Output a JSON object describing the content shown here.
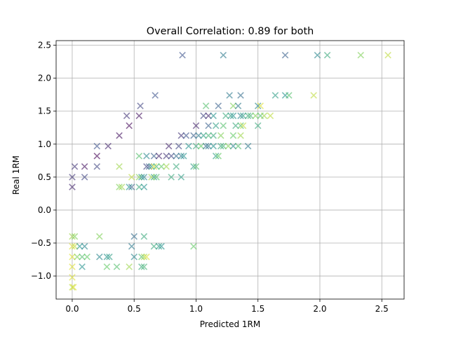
{
  "chart_data": {
    "type": "scatter",
    "title": "Overall Correlation: 0.89 for both",
    "xlabel": "Predicted 1RM",
    "ylabel": "Real 1RM",
    "xlim": [
      -0.13,
      2.68
    ],
    "ylim": [
      -1.35,
      2.57
    ],
    "xticks": [
      0.0,
      0.5,
      1.0,
      1.5,
      2.0,
      2.5
    ],
    "xtick_labels": [
      "0.0",
      "0.5",
      "1.0",
      "1.5",
      "2.0",
      "2.5"
    ],
    "yticks": [
      -1.0,
      -0.5,
      0.0,
      0.5,
      1.0,
      1.5,
      2.0,
      2.5
    ],
    "ytick_labels": [
      "−1.0",
      "−0.5",
      "0.0",
      "0.5",
      "1.0",
      "1.5",
      "2.0",
      "2.5"
    ],
    "grid": true,
    "marker": "x",
    "colormap": "viridis",
    "points": [
      [
        0.0,
        0.35,
        0.1
      ],
      [
        0.0,
        0.5,
        0.15
      ],
      [
        0.02,
        0.66,
        0.15
      ],
      [
        0.1,
        0.66,
        0.05
      ],
      [
        0.1,
        0.5,
        0.2
      ],
      [
        0.2,
        0.82,
        0.0
      ],
      [
        0.2,
        0.97,
        0.25
      ],
      [
        0.2,
        0.66,
        0.2
      ],
      [
        0.29,
        0.97,
        0.1
      ],
      [
        0.38,
        1.13,
        0.05
      ],
      [
        0.44,
        1.43,
        0.15
      ],
      [
        0.46,
        1.28,
        0.02
      ],
      [
        0.54,
        1.43,
        0.05
      ],
      [
        0.55,
        1.58,
        0.2
      ],
      [
        0.67,
        1.74,
        0.25
      ],
      [
        0.89,
        2.35,
        0.25
      ],
      [
        1.22,
        2.35,
        0.4
      ],
      [
        1.72,
        2.35,
        0.3
      ],
      [
        1.98,
        2.35,
        0.45
      ],
      [
        2.06,
        2.35,
        0.6
      ],
      [
        2.33,
        2.35,
        0.8
      ],
      [
        2.55,
        2.35,
        0.9
      ],
      [
        1.08,
        1.58,
        0.7
      ],
      [
        1.18,
        1.58,
        0.3
      ],
      [
        1.27,
        1.74,
        0.4
      ],
      [
        1.36,
        1.74,
        0.35
      ],
      [
        1.64,
        1.74,
        0.55
      ],
      [
        1.72,
        1.74,
        0.5
      ],
      [
        1.75,
        1.74,
        0.7
      ],
      [
        1.95,
        1.74,
        0.9
      ],
      [
        1.3,
        1.58,
        0.8
      ],
      [
        1.34,
        1.58,
        0.4
      ],
      [
        1.5,
        1.58,
        0.45
      ],
      [
        1.52,
        1.58,
        0.95
      ],
      [
        1.06,
        1.43,
        0.2
      ],
      [
        1.1,
        1.43,
        0.1
      ],
      [
        1.14,
        1.43,
        0.5
      ],
      [
        1.24,
        1.43,
        0.6
      ],
      [
        1.28,
        1.43,
        0.55
      ],
      [
        1.3,
        1.43,
        0.5
      ],
      [
        1.36,
        1.43,
        0.45
      ],
      [
        1.38,
        1.43,
        0.55
      ],
      [
        1.42,
        1.43,
        0.6
      ],
      [
        1.44,
        1.43,
        0.65
      ],
      [
        1.48,
        1.43,
        0.8
      ],
      [
        1.52,
        1.43,
        0.7
      ],
      [
        1.6,
        1.43,
        0.9
      ],
      [
        1.55,
        1.43,
        0.85
      ],
      [
        1.0,
        1.28,
        0.1
      ],
      [
        1.1,
        1.28,
        0.3
      ],
      [
        1.16,
        1.28,
        0.55
      ],
      [
        1.22,
        1.28,
        0.7
      ],
      [
        1.32,
        1.28,
        0.6
      ],
      [
        1.36,
        1.28,
        0.7
      ],
      [
        1.38,
        1.28,
        0.9
      ],
      [
        1.5,
        1.28,
        0.6
      ],
      [
        0.88,
        1.13,
        0.15
      ],
      [
        0.92,
        1.13,
        0.25
      ],
      [
        0.98,
        1.13,
        0.3
      ],
      [
        1.02,
        1.13,
        0.4
      ],
      [
        1.06,
        1.13,
        0.55
      ],
      [
        1.1,
        1.13,
        0.65
      ],
      [
        1.14,
        1.13,
        0.6
      ],
      [
        1.2,
        1.13,
        0.8
      ],
      [
        1.3,
        1.13,
        0.75
      ],
      [
        1.36,
        1.13,
        0.85
      ],
      [
        0.78,
        0.97,
        0.1
      ],
      [
        0.86,
        0.97,
        0.2
      ],
      [
        0.94,
        0.97,
        0.5
      ],
      [
        1.0,
        0.97,
        0.6
      ],
      [
        1.04,
        0.97,
        0.75
      ],
      [
        1.08,
        0.97,
        0.35
      ],
      [
        1.1,
        0.97,
        0.4
      ],
      [
        1.14,
        0.97,
        0.5
      ],
      [
        1.2,
        0.97,
        0.6
      ],
      [
        1.22,
        0.97,
        0.65
      ],
      [
        1.26,
        0.97,
        0.8
      ],
      [
        1.3,
        0.97,
        0.45
      ],
      [
        1.34,
        0.97,
        0.7
      ],
      [
        1.42,
        0.97,
        0.4
      ],
      [
        0.54,
        0.82,
        0.7
      ],
      [
        0.6,
        0.82,
        0.45
      ],
      [
        0.66,
        0.82,
        0.3
      ],
      [
        0.7,
        0.82,
        0.1
      ],
      [
        0.76,
        0.82,
        0.15
      ],
      [
        0.8,
        0.82,
        0.2
      ],
      [
        0.84,
        0.82,
        0.35
      ],
      [
        0.88,
        0.82,
        0.4
      ],
      [
        0.9,
        0.82,
        0.5
      ],
      [
        1.16,
        0.82,
        0.55
      ],
      [
        1.18,
        0.82,
        0.75
      ],
      [
        0.38,
        0.66,
        0.85
      ],
      [
        0.6,
        0.66,
        0.2
      ],
      [
        0.62,
        0.66,
        0.3
      ],
      [
        0.64,
        0.66,
        0.55
      ],
      [
        0.66,
        0.66,
        0.95
      ],
      [
        0.68,
        0.66,
        0.65
      ],
      [
        0.72,
        0.66,
        0.75
      ],
      [
        0.76,
        0.66,
        0.85
      ],
      [
        0.84,
        0.66,
        0.6
      ],
      [
        0.98,
        0.66,
        0.55
      ],
      [
        1.0,
        0.66,
        0.7
      ],
      [
        0.48,
        0.5,
        0.9
      ],
      [
        0.54,
        0.5,
        0.8
      ],
      [
        0.56,
        0.5,
        0.5
      ],
      [
        0.58,
        0.5,
        0.45
      ],
      [
        0.64,
        0.5,
        0.85
      ],
      [
        0.66,
        0.5,
        0.55
      ],
      [
        0.68,
        0.5,
        0.7
      ],
      [
        0.8,
        0.5,
        0.6
      ],
      [
        0.88,
        0.5,
        0.55
      ],
      [
        0.38,
        0.35,
        0.8
      ],
      [
        0.4,
        0.35,
        0.85
      ],
      [
        0.46,
        0.35,
        0.5
      ],
      [
        0.48,
        0.35,
        0.3
      ],
      [
        0.54,
        0.35,
        0.6
      ],
      [
        0.58,
        0.35,
        0.5
      ],
      [
        0.0,
        -0.4,
        0.85
      ],
      [
        0.02,
        -0.4,
        0.8
      ],
      [
        0.22,
        -0.4,
        0.8
      ],
      [
        0.5,
        -0.4,
        0.35
      ],
      [
        0.58,
        -0.4,
        0.6
      ],
      [
        0.0,
        -0.55,
        0.95
      ],
      [
        0.02,
        -0.55,
        0.9
      ],
      [
        0.06,
        -0.55,
        0.5
      ],
      [
        0.1,
        -0.55,
        0.45
      ],
      [
        0.48,
        -0.55,
        0.4
      ],
      [
        0.66,
        -0.55,
        0.6
      ],
      [
        0.7,
        -0.55,
        0.55
      ],
      [
        0.72,
        -0.55,
        0.5
      ],
      [
        0.98,
        -0.55,
        0.75
      ],
      [
        0.0,
        -0.71,
        0.95
      ],
      [
        0.04,
        -0.71,
        0.8
      ],
      [
        0.08,
        -0.71,
        0.7
      ],
      [
        0.12,
        -0.71,
        0.75
      ],
      [
        0.22,
        -0.71,
        0.45
      ],
      [
        0.28,
        -0.71,
        0.5
      ],
      [
        0.3,
        -0.71,
        0.55
      ],
      [
        0.5,
        -0.71,
        0.45
      ],
      [
        0.56,
        -0.71,
        0.7
      ],
      [
        0.58,
        -0.71,
        0.85
      ],
      [
        0.6,
        -0.71,
        0.95
      ],
      [
        0.0,
        -0.86,
        0.95
      ],
      [
        0.08,
        -0.86,
        0.5
      ],
      [
        0.28,
        -0.86,
        0.75
      ],
      [
        0.36,
        -0.86,
        0.7
      ],
      [
        0.46,
        -0.86,
        0.85
      ],
      [
        0.56,
        -0.86,
        0.6
      ],
      [
        0.58,
        -0.86,
        0.65
      ],
      [
        0.0,
        -1.02,
        0.95
      ],
      [
        0.0,
        -1.17,
        0.9
      ],
      [
        0.01,
        -1.17,
        0.95
      ]
    ]
  }
}
